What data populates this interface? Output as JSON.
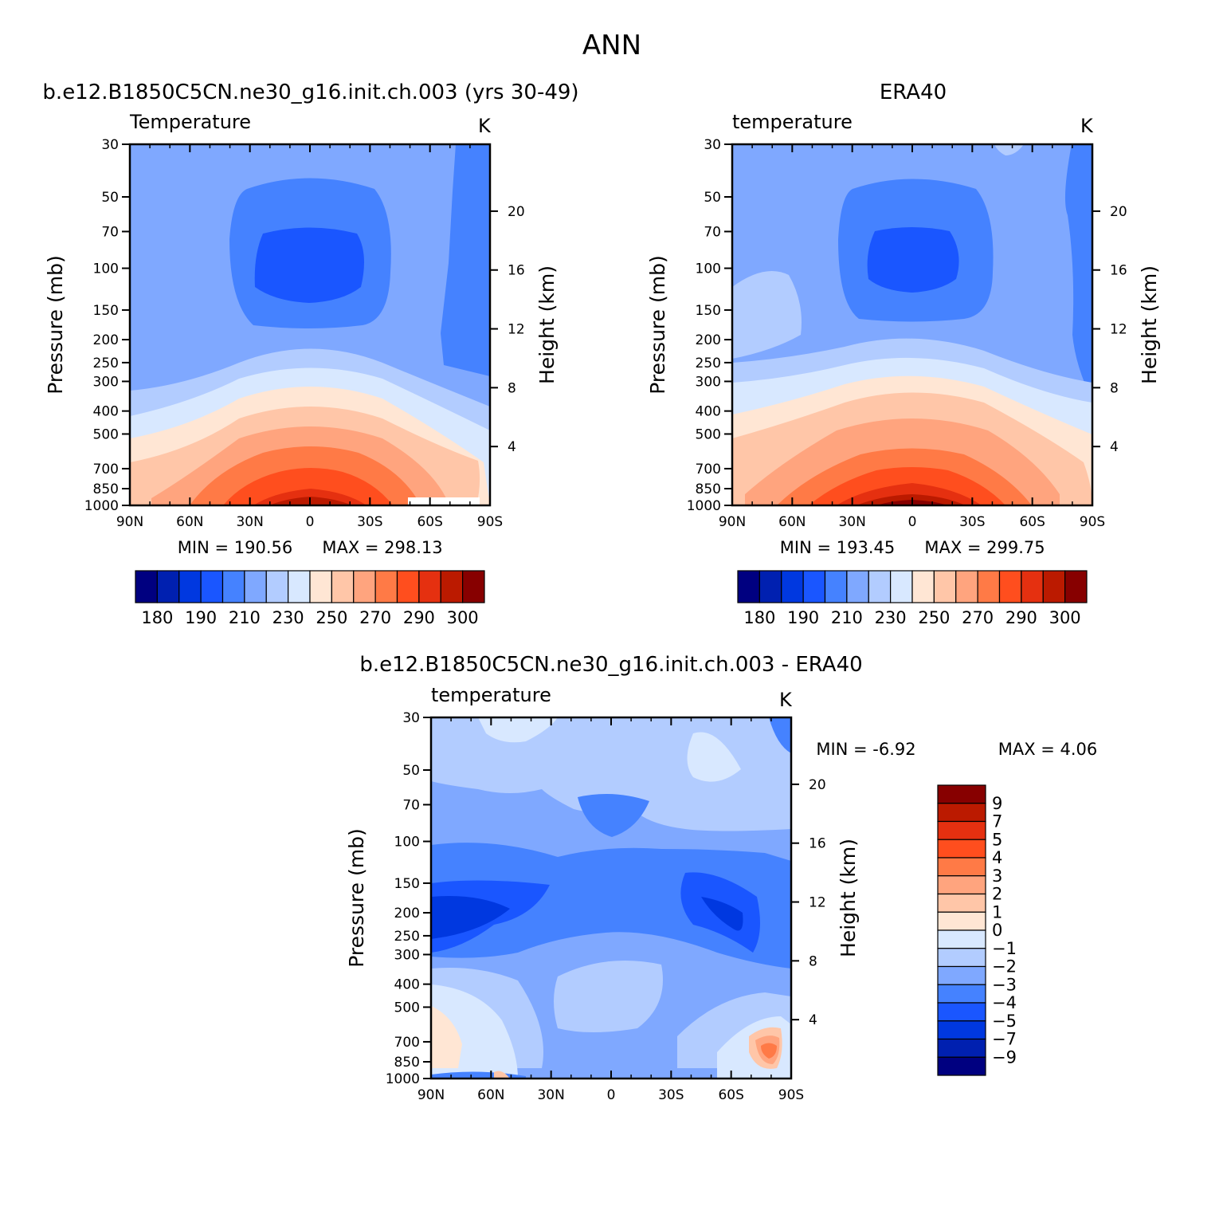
{
  "title": "ANN",
  "palette_abs": [
    "#000080",
    "#0020b0",
    "#0038e0",
    "#1a56ff",
    "#4582ff",
    "#7fa8ff",
    "#b2ccff",
    "#d8e8ff",
    "#ffe6d4",
    "#ffc6a8",
    "#ffa47e",
    "#ff7a46",
    "#ff4e1e",
    "#e53010",
    "#bb1a00",
    "#870000"
  ],
  "palette_diff": [
    "#870000",
    "#bb1a00",
    "#e53010",
    "#ff4e1e",
    "#ff7a46",
    "#ffa47e",
    "#ffc6a8",
    "#ffe6d4",
    "#d8e8ff",
    "#b2ccff",
    "#7fa8ff",
    "#4582ff",
    "#1a56ff",
    "#0038e0",
    "#0020b0",
    "#000080"
  ],
  "chart_data": [
    {
      "type": "heatmap",
      "title": "b.e12.B1850C5CN.ne30_g16.init.ch.003 (yrs 30-49)",
      "variable": "Temperature",
      "units": "K",
      "xlabel": "",
      "ylabel": "Pressure (mb)",
      "ylabel_right": "Height (km)",
      "x_ticks": [
        "90N",
        "60N",
        "30N",
        "0",
        "30S",
        "60S",
        "90S"
      ],
      "y_ticks": [
        30,
        50,
        70,
        100,
        150,
        200,
        250,
        300,
        400,
        500,
        700,
        850,
        1000
      ],
      "y_right_ticks": [
        20,
        16,
        12,
        8,
        4
      ],
      "min_text": "MIN = 190.56",
      "max_text": "MAX = 298.13",
      "min": 190.56,
      "max": 298.13,
      "colorbar_labels": [
        "180",
        "190",
        "210",
        "230",
        "250",
        "270",
        "290",
        "300"
      ],
      "colorbar_levels": [
        180,
        185,
        190,
        200,
        210,
        220,
        230,
        240,
        250,
        260,
        270,
        280,
        290,
        295,
        300
      ]
    },
    {
      "type": "heatmap",
      "title": "ERA40",
      "variable": "temperature",
      "units": "K",
      "xlabel": "",
      "ylabel": "Pressure (mb)",
      "ylabel_right": "Height (km)",
      "x_ticks": [
        "90N",
        "60N",
        "30N",
        "0",
        "30S",
        "60S",
        "90S"
      ],
      "y_ticks": [
        30,
        50,
        70,
        100,
        150,
        200,
        250,
        300,
        400,
        500,
        700,
        850,
        1000
      ],
      "y_right_ticks": [
        20,
        16,
        12,
        8,
        4
      ],
      "min_text": "MIN = 193.45",
      "max_text": "MAX = 299.75",
      "min": 193.45,
      "max": 299.75,
      "colorbar_labels": [
        "180",
        "190",
        "210",
        "230",
        "250",
        "270",
        "290",
        "300"
      ],
      "colorbar_levels": [
        180,
        185,
        190,
        200,
        210,
        220,
        230,
        240,
        250,
        260,
        270,
        280,
        290,
        295,
        300
      ]
    },
    {
      "type": "heatmap",
      "title": "b.e12.B1850C5CN.ne30_g16.init.ch.003 - ERA40",
      "variable": "temperature",
      "units": "K",
      "xlabel": "",
      "ylabel": "Pressure (mb)",
      "ylabel_right": "Height (km)",
      "x_ticks": [
        "90N",
        "60N",
        "30N",
        "0",
        "30S",
        "60S",
        "90S"
      ],
      "y_ticks": [
        30,
        50,
        70,
        100,
        150,
        200,
        250,
        300,
        400,
        500,
        700,
        850,
        1000
      ],
      "y_right_ticks": [
        20,
        16,
        12,
        8,
        4
      ],
      "min_text": "MIN =   -6.92",
      "max_text": "MAX =    4.06",
      "min": -6.92,
      "max": 4.06,
      "colorbar_labels": [
        "9",
        "7",
        "5",
        "4",
        "3",
        "2",
        "1",
        "0",
        "−1",
        "−2",
        "−3",
        "−4",
        "−5",
        "−7",
        "−9"
      ],
      "colorbar_levels": [
        9,
        7,
        5,
        4,
        3,
        2,
        1,
        0,
        -1,
        -2,
        -3,
        -4,
        -5,
        -7,
        -9
      ]
    }
  ]
}
